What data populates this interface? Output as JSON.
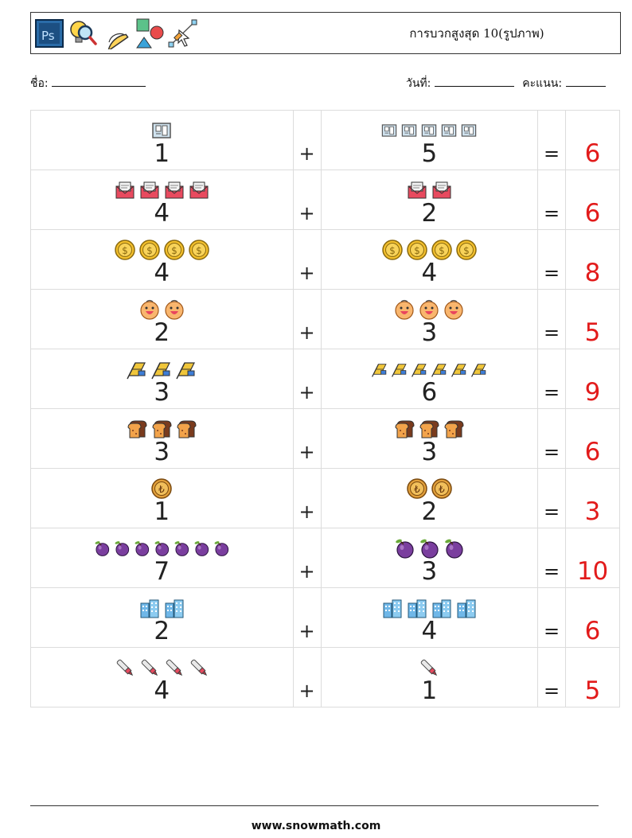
{
  "header": {
    "title": "การบวกสูงสุด 10(รูปภาพ)",
    "icons": [
      "photoshop-icon",
      "magnifier-bulb-icon",
      "protractor-icon",
      "shapes-icon",
      "vector-pen-icon"
    ]
  },
  "info": {
    "name_label": "ชื่อ:",
    "date_label": "วันที่:",
    "score_label": "คะแนน:"
  },
  "problems": [
    {
      "a": "1",
      "b": "5",
      "answer": "6",
      "icon": "film-frame",
      "op": "+",
      "eq": "="
    },
    {
      "a": "4",
      "b": "2",
      "answer": "6",
      "icon": "envelope",
      "op": "+",
      "eq": "="
    },
    {
      "a": "4",
      "b": "4",
      "answer": "8",
      "icon": "dollar-coin",
      "op": "+",
      "eq": "="
    },
    {
      "a": "2",
      "b": "3",
      "answer": "5",
      "icon": "smiley-face",
      "op": "+",
      "eq": "="
    },
    {
      "a": "3",
      "b": "6",
      "answer": "9",
      "icon": "flag",
      "op": "+",
      "eq": "="
    },
    {
      "a": "3",
      "b": "3",
      "answer": "6",
      "icon": "bread-toast",
      "op": "+",
      "eq": "="
    },
    {
      "a": "1",
      "b": "2",
      "answer": "3",
      "icon": "lira-coin",
      "op": "+",
      "eq": "="
    },
    {
      "a": "7",
      "b": "3",
      "answer": "10",
      "icon": "plum",
      "op": "+",
      "eq": "="
    },
    {
      "a": "2",
      "b": "4",
      "answer": "6",
      "icon": "buildings",
      "op": "+",
      "eq": "="
    },
    {
      "a": "4",
      "b": "1",
      "answer": "5",
      "icon": "marker-pen",
      "op": "+",
      "eq": "="
    }
  ],
  "footer": {
    "website": "www.snowmath.com"
  }
}
